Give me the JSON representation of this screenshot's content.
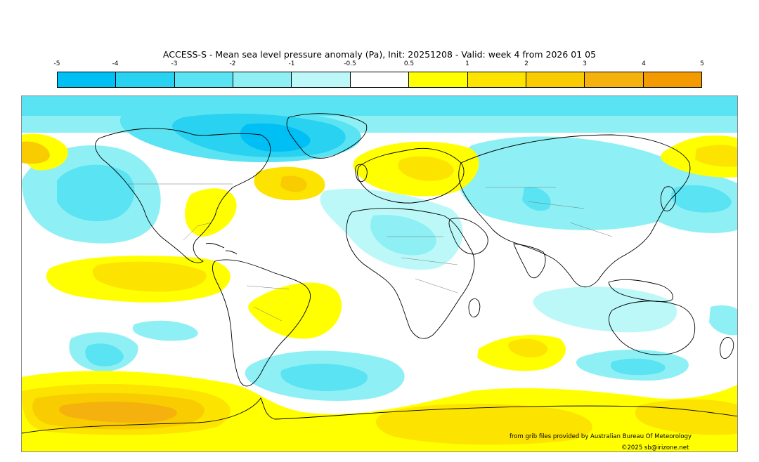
{
  "title": "ACCESS-S - Mean sea level pressure anomaly (Pa), Init: 20251208 - Valid: week 4 from 2026 01 05",
  "colorbar": {
    "tick_labels": [
      "-5",
      "-4",
      "-3",
      "-2",
      "-1",
      "-0.5",
      "0.5",
      "1",
      "2",
      "3",
      "4",
      "5"
    ],
    "colors": [
      "#00bff5",
      "#28d2f0",
      "#5ae3f2",
      "#8ef0f5",
      "#bdf8f9",
      "#ffffff",
      "#ffff00",
      "#fce300",
      "#f8cc00",
      "#f5b10e",
      "#f29a00"
    ]
  },
  "credits": {
    "source": "from grib files provided by Australian Bureau Of Meteorology",
    "copyright": "©2025 sb@irizone.net"
  }
}
